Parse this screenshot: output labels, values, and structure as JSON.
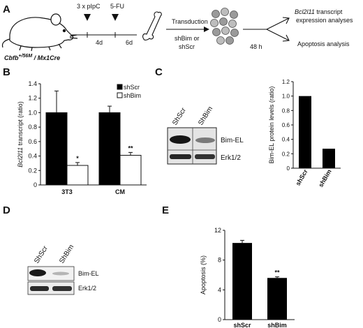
{
  "panel_letters": {
    "a": "A",
    "b": "B",
    "c": "C",
    "d": "D",
    "e": "E"
  },
  "panelA": {
    "mouse_label": "Cbfb",
    "mouse_label_sup": "+/56M",
    "mouse_label_rest": " / Mx1Cre",
    "step1": "3 x pIpC",
    "step2": "5-FU",
    "interval1": "4d",
    "interval2": "6d",
    "transduction_line1": "Transduction",
    "transduction_line2": "shBim or",
    "transduction_line3": "shScr",
    "time": "48 h",
    "out1_italic": "Bcl2l11",
    "out1_rest": " transcript",
    "out1_line2": "expression analyses",
    "out2": "Apoptosis analysis"
  },
  "panelC_blot": {
    "lanes": [
      "ShScr",
      "ShBim"
    ],
    "bands": [
      "Bim-EL",
      "Erk1/2"
    ]
  },
  "panelD_blot": {
    "lanes": [
      "ShScr",
      "ShBim"
    ],
    "bands": [
      "Bim-EL",
      "Erk1/2"
    ]
  },
  "chart_data": [
    {
      "id": "B",
      "type": "bar",
      "categories": [
        "3T3",
        "CM"
      ],
      "series": [
        {
          "name": "shScr",
          "values": [
            1.0,
            1.0
          ],
          "errors": [
            0.3,
            0.09
          ],
          "color": "#000000"
        },
        {
          "name": "shBim",
          "values": [
            0.27,
            0.41
          ],
          "errors": [
            0.04,
            0.04
          ],
          "color": "#ffffff"
        }
      ],
      "significance": [
        "*",
        "**"
      ],
      "ylabel_italic": "Bcl2l11",
      "ylabel_rest": " transcript (ratio)",
      "ylim": [
        0,
        1.4
      ],
      "yticks": [
        "0",
        "0.2",
        "0.4",
        "0.6",
        "0.8",
        "1.0",
        "1.2",
        "1.4"
      ],
      "legend_position": "top-right"
    },
    {
      "id": "C",
      "type": "bar",
      "categories": [
        "shScr",
        "shBim"
      ],
      "values": [
        1.0,
        0.27
      ],
      "ylabel": "Bim-EL protein levels (ratio)",
      "ylim": [
        0,
        1.2
      ],
      "yticks": [
        "0",
        "0.2",
        "0.4",
        "0.6",
        "0.8",
        "1.0",
        "1.2"
      ],
      "color": "#000000"
    },
    {
      "id": "E",
      "type": "bar",
      "categories": [
        "shScr",
        "shBim"
      ],
      "values": [
        10.3,
        5.6
      ],
      "errors": [
        0.35,
        0.15
      ],
      "significance": [
        "",
        "**"
      ],
      "ylabel": "Apoptosis (%)",
      "ylim": [
        0,
        12
      ],
      "yticks": [
        "0",
        "4",
        "8",
        "12"
      ],
      "color": "#000000"
    }
  ]
}
